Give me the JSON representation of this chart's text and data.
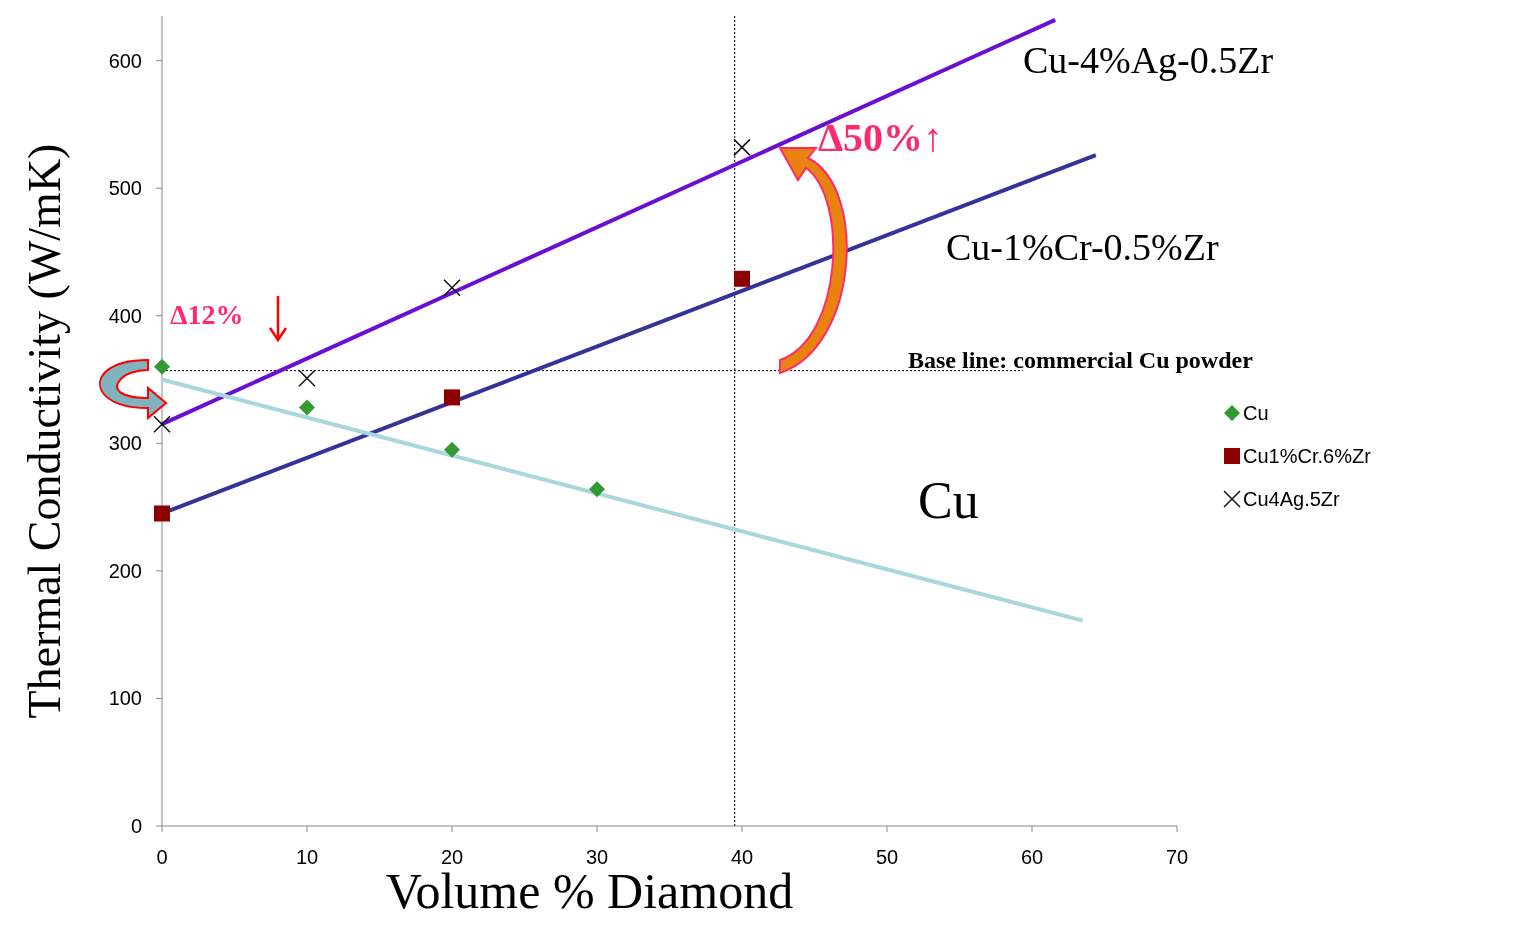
{
  "chart_data": {
    "type": "scatter",
    "xlabel": "Volume % Diamond",
    "ylabel": "Thermal Conductivity (W/mK)",
    "xlim": [
      0,
      70
    ],
    "xticks": [
      0,
      10,
      20,
      30,
      40,
      50,
      60,
      70
    ],
    "ylim": [
      0,
      635
    ],
    "yticks": [
      0,
      100,
      200,
      300,
      400,
      500,
      600
    ],
    "legend": "right",
    "grid": false,
    "series": [
      {
        "name": "Cu",
        "type": "scatter",
        "marker": "diamond",
        "color": "#339933",
        "x": [
          0,
          10,
          20,
          30
        ],
        "values": [
          360,
          328,
          295,
          264
        ]
      },
      {
        "name": "Cu1%Cr.6%Zr",
        "type": "scatter",
        "marker": "square",
        "color": "#8b0000",
        "x": [
          0,
          20,
          40
        ],
        "values": [
          245,
          336,
          429
        ]
      },
      {
        "name": "Cu4Ag.5Zr",
        "type": "scatter",
        "marker": "cross",
        "color": "#111111",
        "x": [
          0,
          10,
          20,
          40
        ],
        "values": [
          315,
          351,
          422,
          532
        ]
      },
      {
        "type": "line",
        "color": "#6a0dd6",
        "x": [
          0,
          61.6
        ],
        "values": [
          315,
          632
        ]
      },
      {
        "type": "line",
        "color": "#333399",
        "x": [
          0,
          64.4
        ],
        "values": [
          245,
          526
        ]
      },
      {
        "type": "line",
        "color": "#a8d8dc",
        "x": [
          0,
          63.5
        ],
        "values": [
          350,
          161
        ]
      }
    ],
    "ref_lines": [
      {
        "axis": "y",
        "value": 357,
        "label": "Base line: commercial Cu powder",
        "line_style": "dotted",
        "color": "#000000"
      },
      {
        "axis": "x",
        "value": 39.5,
        "line_style": "dotted",
        "color": "#000000"
      }
    ],
    "annotations": [
      "Cu-4%Ag-0.5Zr",
      "Cu-1%Cr-0.5%Zr",
      "Cu",
      "Δ50%↑",
      "Δ12%"
    ]
  }
}
